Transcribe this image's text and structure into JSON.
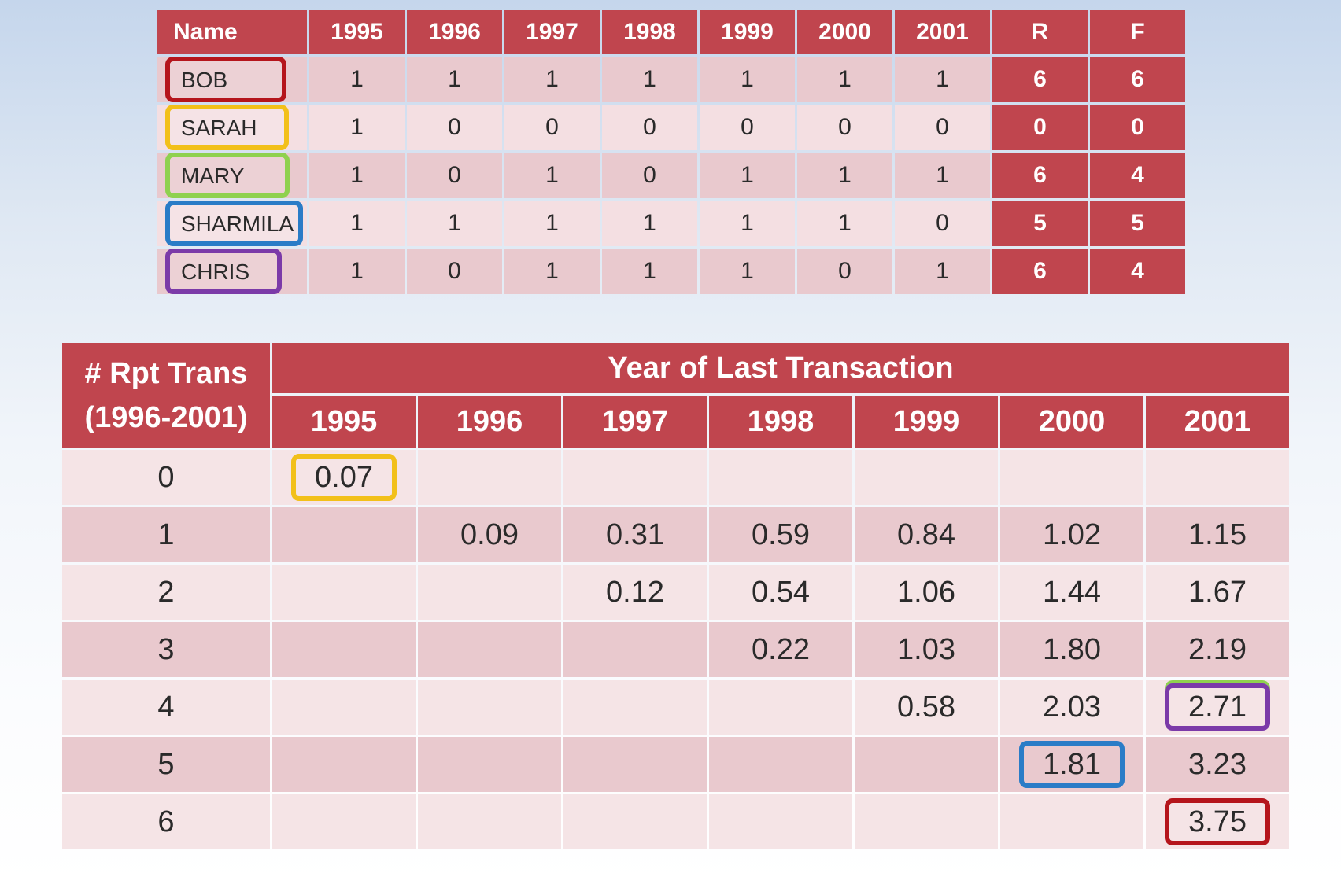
{
  "top_table": {
    "headers": [
      "Name",
      "1995",
      "1996",
      "1997",
      "1998",
      "1999",
      "2000",
      "2001",
      "R",
      "F"
    ],
    "rows": [
      {
        "name": "BOB",
        "box_color": "#b5151c",
        "values": [
          "1",
          "1",
          "1",
          "1",
          "1",
          "1",
          "1"
        ],
        "r": "6",
        "f": "6"
      },
      {
        "name": "SARAH",
        "box_color": "#f2c01a",
        "values": [
          "1",
          "0",
          "0",
          "0",
          "0",
          "0",
          "0"
        ],
        "r": "0",
        "f": "0"
      },
      {
        "name": "MARY",
        "box_color": "#8fd14f",
        "values": [
          "1",
          "0",
          "1",
          "0",
          "1",
          "1",
          "1"
        ],
        "r": "6",
        "f": "4"
      },
      {
        "name": "SHARMILA",
        "box_color": "#2a7cc7",
        "values": [
          "1",
          "1",
          "1",
          "1",
          "1",
          "1",
          "0"
        ],
        "r": "5",
        "f": "5"
      },
      {
        "name": "CHRIS",
        "box_color": "#7b3aa8",
        "values": [
          "1",
          "0",
          "1",
          "1",
          "1",
          "0",
          "1"
        ],
        "r": "6",
        "f": "4"
      }
    ]
  },
  "bottom_table": {
    "corner_line1": "# Rpt Trans",
    "corner_line2": "(1996-2001)",
    "title": "Year of Last Transaction",
    "years": [
      "1995",
      "1996",
      "1997",
      "1998",
      "1999",
      "2000",
      "2001"
    ],
    "rows": [
      {
        "label": "0",
        "values": [
          "0.07",
          "",
          "",
          "",
          "",
          "",
          ""
        ]
      },
      {
        "label": "1",
        "values": [
          "",
          "0.09",
          "0.31",
          "0.59",
          "0.84",
          "1.02",
          "1.15"
        ]
      },
      {
        "label": "2",
        "values": [
          "",
          "",
          "0.12",
          "0.54",
          "1.06",
          "1.44",
          "1.67"
        ]
      },
      {
        "label": "3",
        "values": [
          "",
          "",
          "",
          "0.22",
          "1.03",
          "1.80",
          "2.19"
        ]
      },
      {
        "label": "4",
        "values": [
          "",
          "",
          "",
          "",
          "0.58",
          "2.03",
          "2.71"
        ]
      },
      {
        "label": "5",
        "values": [
          "",
          "",
          "",
          "",
          "",
          "1.81",
          "3.23"
        ]
      },
      {
        "label": "6",
        "values": [
          "",
          "",
          "",
          "",
          "",
          "",
          "3.75"
        ]
      }
    ],
    "highlights": [
      {
        "row": 0,
        "col": 0,
        "color": "#f2c01a"
      },
      {
        "row": 4,
        "col": 6,
        "color": "#7b3aa8",
        "outer_color": "#8fd14f"
      },
      {
        "row": 5,
        "col": 5,
        "color": "#2a7cc7"
      },
      {
        "row": 6,
        "col": 6,
        "color": "#b5151c"
      }
    ]
  },
  "colors": {
    "header": "#c0454e",
    "row_dark": "#e9c9ce",
    "row_light": "#f4dfe2"
  }
}
